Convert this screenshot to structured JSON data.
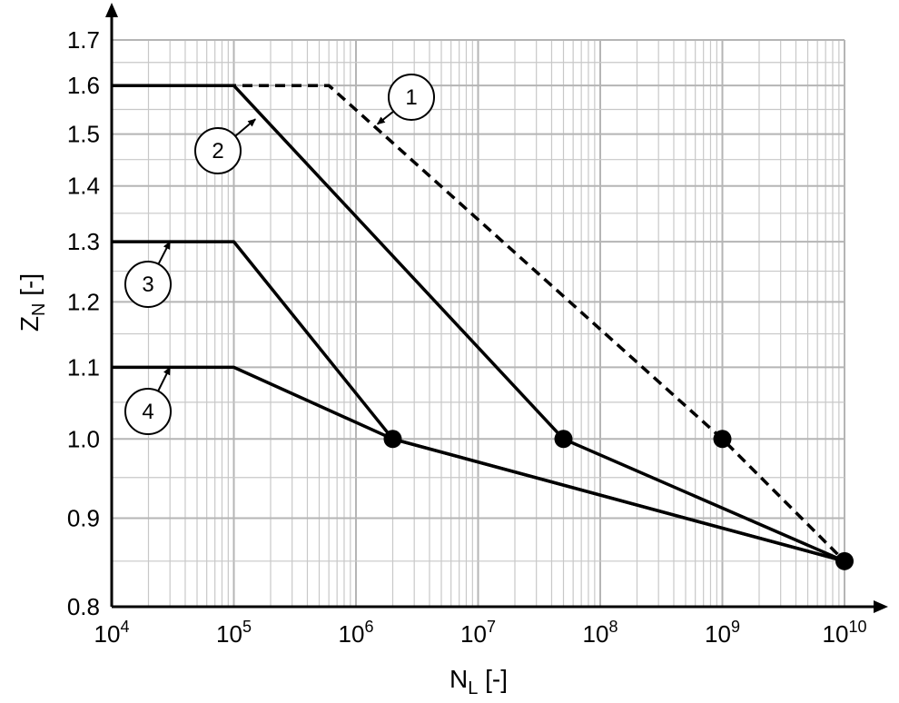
{
  "chart_data": {
    "type": "line",
    "x_scale": "log",
    "y_scale": "log",
    "xlim": [
      10000,
      10000000000
    ],
    "ylim": [
      0.8,
      1.7
    ],
    "grid": true,
    "xlabel": {
      "main": "N",
      "sub": "L",
      "suffix": " [-]"
    },
    "ylabel": {
      "main": "Z",
      "sub": "N",
      "suffix": " [-]"
    },
    "x_ticks": [
      {
        "value": 10000,
        "base": "10",
        "exp": "4"
      },
      {
        "value": 100000,
        "base": "10",
        "exp": "5"
      },
      {
        "value": 1000000,
        "base": "10",
        "exp": "6"
      },
      {
        "value": 10000000,
        "base": "10",
        "exp": "7"
      },
      {
        "value": 100000000,
        "base": "10",
        "exp": "8"
      },
      {
        "value": 1000000000,
        "base": "10",
        "exp": "9"
      },
      {
        "value": 10000000000,
        "base": "10",
        "exp": "10"
      }
    ],
    "y_ticks": [
      {
        "value": 0.8,
        "label": "0.8"
      },
      {
        "value": 0.9,
        "label": "0.9"
      },
      {
        "value": 1.0,
        "label": "1.0"
      },
      {
        "value": 1.1,
        "label": "1.1"
      },
      {
        "value": 1.2,
        "label": "1.2"
      },
      {
        "value": 1.3,
        "label": "1.3"
      },
      {
        "value": 1.4,
        "label": "1.4"
      },
      {
        "value": 1.5,
        "label": "1.5"
      },
      {
        "value": 1.6,
        "label": "1.6"
      },
      {
        "value": 1.7,
        "label": "1.7"
      }
    ],
    "series": [
      {
        "name": "1",
        "style": "dashed",
        "x": [
          10000,
          600000,
          1000000000,
          10000000000
        ],
        "y": [
          1.6,
          1.6,
          1.0,
          0.85
        ]
      },
      {
        "name": "2",
        "style": "solid",
        "x": [
          10000,
          100000,
          50000000,
          10000000000
        ],
        "y": [
          1.6,
          1.6,
          1.0,
          0.85
        ]
      },
      {
        "name": "3",
        "style": "solid",
        "x": [
          10000,
          100000,
          2000000,
          10000000000
        ],
        "y": [
          1.3,
          1.3,
          1.0,
          0.85
        ]
      },
      {
        "name": "4",
        "style": "solid",
        "x": [
          10000,
          100000,
          2000000,
          10000000000
        ],
        "y": [
          1.1,
          1.1,
          1.0,
          0.85
        ]
      }
    ],
    "markers": [
      {
        "x": 2000000,
        "y": 1.0
      },
      {
        "x": 50000000,
        "y": 1.0
      },
      {
        "x": 1000000000,
        "y": 1.0
      },
      {
        "x": 10000000000,
        "y": 0.85
      }
    ],
    "callouts": [
      {
        "label": "1",
        "center": {
          "x": 6000000000000000,
          "y": 1.0
        },
        "arrow_to": {
          "x": 1500000,
          "y": 1.52
        }
      },
      {
        "label": "2",
        "arrow_to": {
          "x": 150000,
          "y": 1.53
        }
      },
      {
        "label": "3",
        "arrow_to": {
          "x": 30000,
          "y": 1.3
        }
      },
      {
        "label": "4",
        "arrow_to": {
          "x": 30000,
          "y": 1.1
        }
      }
    ]
  }
}
